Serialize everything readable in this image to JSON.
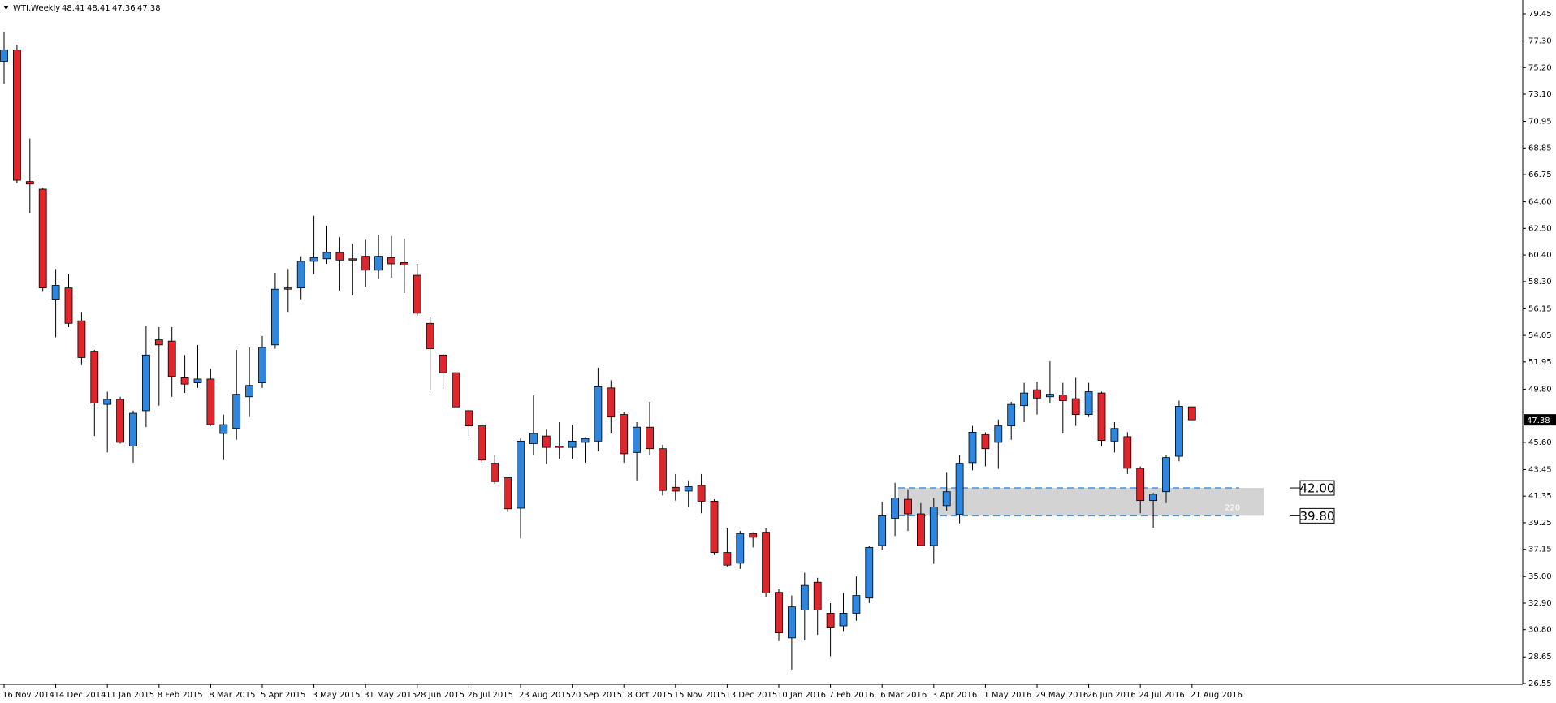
{
  "chart_data": {
    "type": "candlestick",
    "symbol": "WTI,Weekly",
    "categories": [
      "16 Nov 2014",
      null,
      null,
      null,
      "14 Dec 2014",
      null,
      null,
      null,
      "11 Jan 2015",
      null,
      null,
      null,
      "8 Feb 2015",
      null,
      null,
      null,
      "8 Mar 2015",
      null,
      null,
      null,
      "5 Apr 2015",
      null,
      null,
      null,
      "3 May 2015",
      null,
      null,
      null,
      "31 May 2015",
      null,
      null,
      null,
      "28 Jun 2015",
      null,
      null,
      null,
      "26 Jul 2015",
      null,
      null,
      null,
      "23 Aug 2015",
      null,
      null,
      null,
      "20 Sep 2015",
      null,
      null,
      null,
      "18 Oct 2015",
      null,
      null,
      null,
      "15 Nov 2015",
      null,
      null,
      null,
      "13 Dec 2015",
      null,
      null,
      null,
      "10 Jan 2016",
      null,
      null,
      null,
      "7 Feb 2016",
      null,
      null,
      null,
      "6 Mar 2016",
      null,
      null,
      null,
      "3 Apr 2016",
      null,
      null,
      null,
      "1 May 2016",
      null,
      null,
      null,
      "29 May 2016",
      null,
      null,
      null,
      "26 Jun 2016",
      null,
      null,
      null,
      "24 Jul 2016",
      null,
      null,
      null,
      "21 Aug 2016"
    ],
    "open": [
      75.7,
      76.6,
      66.2,
      65.6,
      56.9,
      57.8,
      55.2,
      52.8,
      48.6,
      49.0,
      45.3,
      48.1,
      53.7,
      53.6,
      50.7,
      50.3,
      50.6,
      46.3,
      46.7,
      49.2,
      50.3,
      53.3,
      57.7,
      57.8,
      59.9,
      60.1,
      60.6,
      60.1,
      60.3,
      59.2,
      60.2,
      59.8,
      58.8,
      55.0,
      52.5,
      51.1,
      48.1,
      46.9,
      43.95,
      42.8,
      40.4,
      45.5,
      46.1,
      45.3,
      45.2,
      45.6,
      45.7,
      49.9,
      47.8,
      44.8,
      46.8,
      45.1,
      42.05,
      41.75,
      42.2,
      40.95,
      36.9,
      36.05,
      38.4,
      38.5,
      33.75,
      30.15,
      32.35,
      34.55,
      32.1,
      31.1,
      32.1,
      33.3,
      37.45,
      39.6,
      41.1,
      39.95,
      37.45,
      40.6,
      39.9,
      44.0,
      46.2,
      45.6,
      46.9,
      48.5,
      49.75,
      49.2,
      49.35,
      49.05,
      47.8,
      49.5,
      45.7,
      46.05,
      43.55,
      41.0,
      41.7,
      44.5,
      48.41
    ],
    "high": [
      78.0,
      77.0,
      69.6,
      65.7,
      59.3,
      58.9,
      55.9,
      52.9,
      49.6,
      49.2,
      48.1,
      54.8,
      54.7,
      54.7,
      52.5,
      53.3,
      51.4,
      47.8,
      52.9,
      53.1,
      54.0,
      59.0,
      59.3,
      60.3,
      63.5,
      62.7,
      61.8,
      61.3,
      61.6,
      62.0,
      61.9,
      61.7,
      59.7,
      55.5,
      52.6,
      51.2,
      48.2,
      47.0,
      44.6,
      42.9,
      45.9,
      49.3,
      46.6,
      47.2,
      47.0,
      46.0,
      51.5,
      50.5,
      48.0,
      47.2,
      48.8,
      45.4,
      43.1,
      42.6,
      43.1,
      41.1,
      38.8,
      38.6,
      38.5,
      38.8,
      34.0,
      33.5,
      35.3,
      34.9,
      32.9,
      33.7,
      35.0,
      37.4,
      40.9,
      42.4,
      41.9,
      40.8,
      41.2,
      43.2,
      44.6,
      46.9,
      46.4,
      47.4,
      48.8,
      50.3,
      50.4,
      52.0,
      50.3,
      50.7,
      50.3,
      49.6,
      47.2,
      46.4,
      43.7,
      41.6,
      44.6,
      48.9,
      48.41
    ],
    "low": [
      73.9,
      66.05,
      63.7,
      57.5,
      53.9,
      54.7,
      51.7,
      46.1,
      44.8,
      45.5,
      44.0,
      46.8,
      48.5,
      49.2,
      49.5,
      49.9,
      46.9,
      44.2,
      45.8,
      47.6,
      49.9,
      53.0,
      55.9,
      56.9,
      58.9,
      59.7,
      57.6,
      57.2,
      57.9,
      58.5,
      58.6,
      57.4,
      55.6,
      49.7,
      49.8,
      48.3,
      46.1,
      44.0,
      42.3,
      40.1,
      38.0,
      44.6,
      43.9,
      44.3,
      44.3,
      44.0,
      44.9,
      46.3,
      44.0,
      42.6,
      44.6,
      41.4,
      41.0,
      40.5,
      40.0,
      36.7,
      35.8,
      35.6,
      37.3,
      33.4,
      29.9,
      27.65,
      29.95,
      30.4,
      28.7,
      30.7,
      31.5,
      32.9,
      37.1,
      38.2,
      38.6,
      37.4,
      36.0,
      40.2,
      39.2,
      43.4,
      43.7,
      43.5,
      45.8,
      47.2,
      47.8,
      48.7,
      46.3,
      46.9,
      47.6,
      45.3,
      44.8,
      43.1,
      40.0,
      38.85,
      40.8,
      44.1,
      47.36
    ],
    "close": [
      76.6,
      66.3,
      66.0,
      57.8,
      58.0,
      55.0,
      52.3,
      48.7,
      49.0,
      45.6,
      47.9,
      52.5,
      53.3,
      50.8,
      50.2,
      50.6,
      47.0,
      47.0,
      49.4,
      50.1,
      53.1,
      57.7,
      57.8,
      59.9,
      60.2,
      60.6,
      60.0,
      60.0,
      59.2,
      60.3,
      59.7,
      59.6,
      55.8,
      53.0,
      51.1,
      48.4,
      46.9,
      44.2,
      42.5,
      40.35,
      45.7,
      46.3,
      45.2,
      45.2,
      45.7,
      45.9,
      50.0,
      47.6,
      44.7,
      46.8,
      45.1,
      41.8,
      41.75,
      42.1,
      40.95,
      36.9,
      35.9,
      38.4,
      38.1,
      33.7,
      30.55,
      32.6,
      34.3,
      32.35,
      31.0,
      32.1,
      33.5,
      37.3,
      39.8,
      41.2,
      39.95,
      37.45,
      40.5,
      41.7,
      43.95,
      46.4,
      45.1,
      46.9,
      48.6,
      49.5,
      49.1,
      49.4,
      48.9,
      47.8,
      49.6,
      45.75,
      46.7,
      43.55,
      41.0,
      41.5,
      44.4,
      48.45,
      47.38
    ],
    "up_color": "#2e86de",
    "down_color": "#e0262d",
    "ylim": [
      26.55,
      79.45
    ],
    "yticks": [
      79.45,
      {
        "value": 77.3,
        "label": "77.30"
      },
      {
        "value": 75.2,
        "label": "75.20"
      },
      {
        "value": 73.1,
        "label": "73.10"
      },
      70.95,
      68.85,
      66.75,
      {
        "value": 64.6,
        "label": "64.60"
      },
      {
        "value": 62.5,
        "label": "62.50"
      },
      {
        "value": 60.4,
        "label": "60.40"
      },
      {
        "value": 58.3,
        "label": "58.30"
      },
      56.15,
      54.05,
      51.95,
      {
        "value": 49.8,
        "label": "49.80"
      },
      {
        "value": 45.6,
        "label": "45.60"
      },
      43.45,
      41.35,
      39.25,
      37.15,
      {
        "value": 35,
        "label": "35.00"
      },
      {
        "value": 32.9,
        "label": "32.90"
      },
      {
        "value": 30.8,
        "label": "30.80"
      },
      28.65,
      26.55
    ],
    "zone": {
      "top": {
        "value": 42,
        "label": "42.00"
      },
      "bottom": {
        "value": 39.8,
        "label": "39.80"
      },
      "text": "220",
      "color": "#d3d3d3",
      "line_color": "#4a90e2"
    }
  }
}
